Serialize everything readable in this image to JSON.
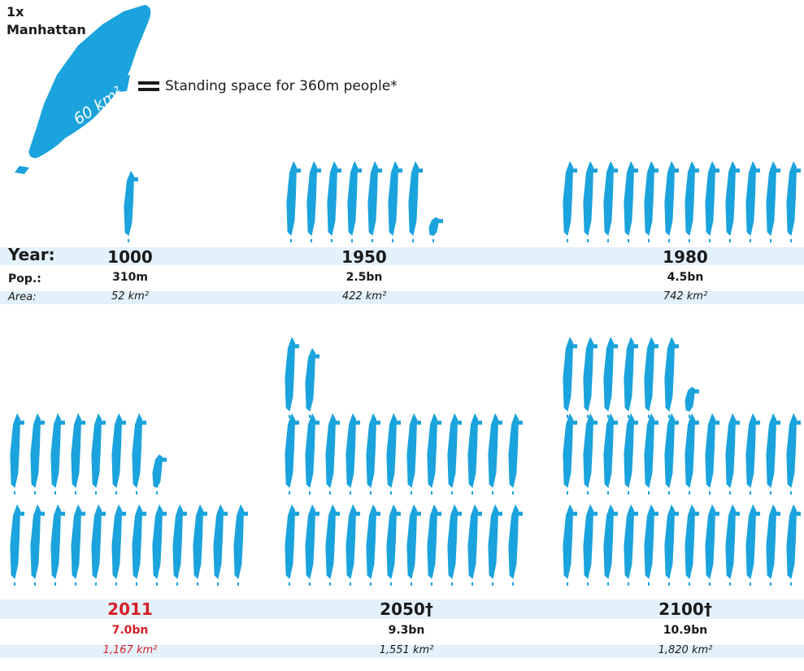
{
  "legend": {
    "title_line1": "1x",
    "title_line2": "Manhattan",
    "area_label": "60 km²",
    "text": "Standing space for 360m people*"
  },
  "row_labels": {
    "year": "Year:",
    "pop": "Pop.:",
    "area": "Area:"
  },
  "colors": {
    "island": "#1aa3dc",
    "band": "#e3f1fb",
    "highlight": "#d41f26",
    "text": "#1a1a1a"
  },
  "chart_data": {
    "type": "pictogram",
    "unit": "1 Manhattan = 60 km² = standing space for 360m people",
    "categories": [
      "1000",
      "1950",
      "1980",
      "2011",
      "2050†",
      "2100†"
    ],
    "series": [
      {
        "name": "Pop.:",
        "values": [
          "310m",
          "2.5bn",
          "4.5bn",
          "7.0bn",
          "9.3bn",
          "10.9bn"
        ]
      },
      {
        "name": "Area:",
        "values": [
          "52 km²",
          "422 km²",
          "742 km²",
          "1,167 km²",
          "1,551 km²",
          "1,820 km²"
        ]
      }
    ],
    "area_km2": [
      52,
      422,
      742,
      1167,
      1551,
      1820
    ],
    "manhattans": [
      0.87,
      7.03,
      12.37,
      19.45,
      25.85,
      30.33
    ],
    "highlight": "2011"
  }
}
